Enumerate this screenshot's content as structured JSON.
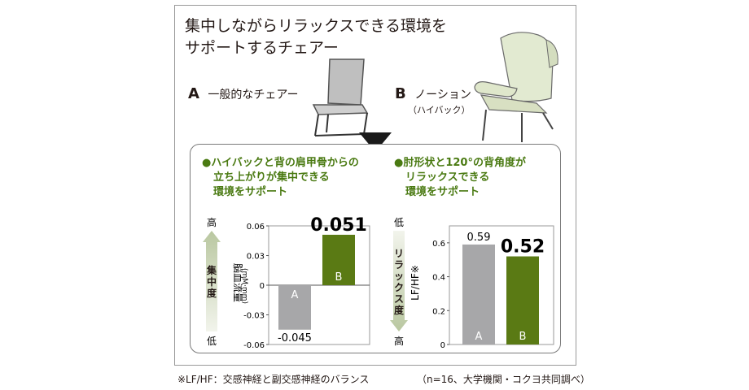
{
  "title_lines": [
    "集中しながらリラックスできる環境を",
    "サポートするチェアー"
  ],
  "chair_a": {
    "letter": "A",
    "label": "一般的なチェアー"
  },
  "chair_b": {
    "letter": "B",
    "label": "ノーション",
    "sub": "（ハイバック）"
  },
  "left_note": [
    "●ハイバックと背の肩甲骨からの",
    "立ち上がりが集中できる",
    "環境をサポート"
  ],
  "right_note": [
    "●肘形状と120°の背角度が",
    "リラックスできる",
    "環境をサポート"
  ],
  "chart_data": [
    {
      "type": "bar",
      "categories": [
        "A",
        "B"
      ],
      "values": [
        -0.045,
        0.051
      ],
      "value_labels": [
        "-0.045",
        "0.051"
      ],
      "ylabel": "脳血流量",
      "yunit": "(mM·mm)",
      "ylim": [
        -0.06,
        0.06
      ],
      "yticks": [
        "0.06",
        "0.03",
        "0",
        "-0.03",
        "-0.06"
      ],
      "ytick_values": [
        0.06,
        0.03,
        0,
        -0.03,
        -0.06
      ],
      "side_axis": {
        "top": "高",
        "bottom": "低",
        "label": "集中度"
      },
      "colors": [
        "#a7a7a9",
        "#5a7a14"
      ]
    },
    {
      "type": "bar",
      "categories": [
        "A",
        "B"
      ],
      "values": [
        0.59,
        0.52
      ],
      "value_labels": [
        "0.59",
        "0.52"
      ],
      "ylabel": "LF/HF※",
      "ylim": [
        0,
        0.7
      ],
      "yticks": [
        "0.6",
        "0.4",
        "0.2",
        "0"
      ],
      "ytick_values": [
        0.6,
        0.4,
        0.2,
        0
      ],
      "side_axis": {
        "top": "低",
        "bottom": "高",
        "label": "リラックス度"
      },
      "colors": [
        "#a7a7a9",
        "#5a7a14"
      ]
    }
  ],
  "footnote_left": "※LF/HF：交感神経と副交感神経のバランス",
  "footnote_right": "（n=16、大学機関・コクヨ共同調べ）"
}
